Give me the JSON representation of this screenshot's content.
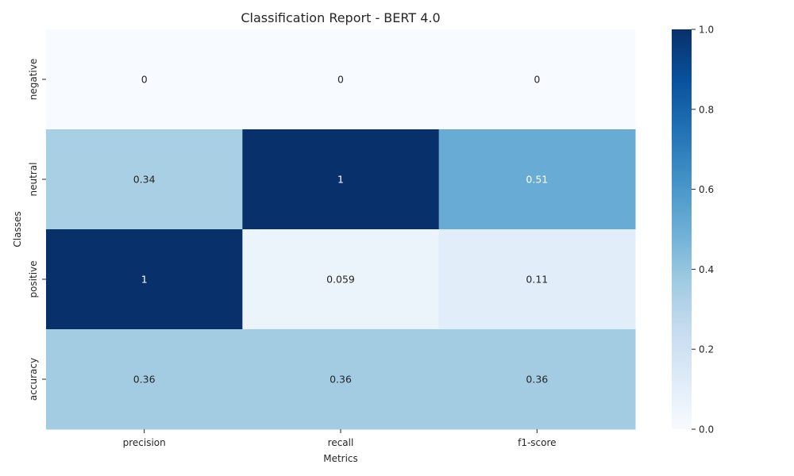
{
  "chart_data": {
    "type": "heatmap",
    "title": "Classification Report - BERT 4.0",
    "xlabel": "Metrics",
    "ylabel": "Classes",
    "x_categories": [
      "precision",
      "recall",
      "f1-score"
    ],
    "y_categories": [
      "negative",
      "neutral",
      "positive",
      "accuracy"
    ],
    "values": [
      [
        0,
        0,
        0
      ],
      [
        0.34,
        1,
        0.51
      ],
      [
        1,
        0.059,
        0.11
      ],
      [
        0.36,
        0.36,
        0.36
      ]
    ],
    "cell_labels": [
      [
        "0",
        "0",
        "0"
      ],
      [
        "0.34",
        "1",
        "0.51"
      ],
      [
        "1",
        "0.059",
        "0.11"
      ],
      [
        "0.36",
        "0.36",
        "0.36"
      ]
    ],
    "colormap": "Blues",
    "colorbar": {
      "range": [
        0,
        1
      ],
      "ticks": [
        0.0,
        0.2,
        0.4,
        0.6,
        0.8,
        1.0
      ],
      "tick_labels": [
        "0.0",
        "0.2",
        "0.4",
        "0.6",
        "0.8",
        "1.0"
      ]
    },
    "grid": false
  }
}
